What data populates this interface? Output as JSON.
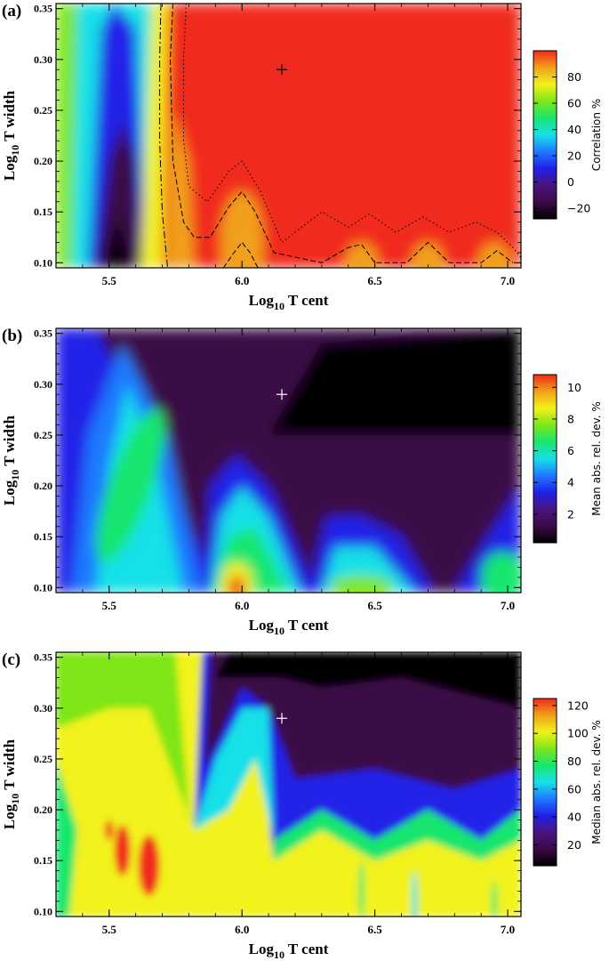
{
  "chart_data": [
    {
      "type": "heatmap",
      "panel_label": "(a)",
      "xlabel": "Log10 T cent",
      "ylabel": "Log10 T width",
      "xlim": [
        5.3,
        7.05
      ],
      "ylim": [
        0.095,
        0.355
      ],
      "xticks": [
        5.5,
        6.0,
        6.5,
        7.0
      ],
      "xtick_labels": [
        "5.5",
        "6.0",
        "6.5",
        "7.0"
      ],
      "yticks": [
        0.1,
        0.15,
        0.2,
        0.25,
        0.3,
        0.35
      ],
      "ytick_labels": [
        "0.10",
        "0.15",
        "0.20",
        "0.25",
        "0.30",
        "0.35"
      ],
      "colorbar": {
        "label": "Correlation %",
        "range": [
          -28,
          100
        ],
        "ticks": [
          -20,
          0,
          20,
          40,
          60,
          80
        ],
        "tick_labels": [
          "−20",
          "0",
          "20",
          "40",
          "60",
          "80"
        ]
      },
      "marker": {
        "x": 6.15,
        "y": 0.29,
        "color": "#000000"
      },
      "contours": "dashed, dotted and dash-dot contour lines"
    },
    {
      "type": "heatmap",
      "panel_label": "(b)",
      "xlabel": "Log10 T cent",
      "ylabel": "Log10 T width",
      "xlim": [
        5.3,
        7.05
      ],
      "ylim": [
        0.095,
        0.355
      ],
      "xticks": [
        5.5,
        6.0,
        6.5,
        7.0
      ],
      "xtick_labels": [
        "5.5",
        "6.0",
        "6.5",
        "7.0"
      ],
      "yticks": [
        0.1,
        0.15,
        0.2,
        0.25,
        0.3,
        0.35
      ],
      "ytick_labels": [
        "0.10",
        "0.15",
        "0.20",
        "0.25",
        "0.30",
        "0.35"
      ],
      "colorbar": {
        "label": "Mean abs. rel. dev. %",
        "range": [
          0.2,
          10.8
        ],
        "ticks": [
          2,
          4,
          6,
          8,
          10
        ],
        "tick_labels": [
          "2",
          "4",
          "6",
          "8",
          "10"
        ]
      },
      "marker": {
        "x": 6.15,
        "y": 0.29,
        "color": "#ffffff"
      }
    },
    {
      "type": "heatmap",
      "panel_label": "(c)",
      "xlabel": "Log10 T cent",
      "ylabel": "Log10 T width",
      "xlim": [
        5.3,
        7.05
      ],
      "ylim": [
        0.095,
        0.355
      ],
      "xticks": [
        5.5,
        6.0,
        6.5,
        7.0
      ],
      "xtick_labels": [
        "5.5",
        "6.0",
        "6.5",
        "7.0"
      ],
      "yticks": [
        0.1,
        0.15,
        0.2,
        0.25,
        0.3,
        0.35
      ],
      "ytick_labels": [
        "0.10",
        "0.15",
        "0.20",
        "0.25",
        "0.30",
        "0.35"
      ],
      "colorbar": {
        "label": "Median abs. rel. dev. %",
        "range": [
          5,
          125
        ],
        "ticks": [
          20,
          40,
          60,
          80,
          100,
          120
        ],
        "tick_labels": [
          "20",
          "40",
          "60",
          "80",
          "100",
          "120"
        ]
      },
      "marker": {
        "x": 6.15,
        "y": 0.29,
        "color": "#ffffff"
      }
    }
  ],
  "axis_text": {
    "log_prefix": "Log",
    "log_subscript": "10",
    "x_suffix": "T cent",
    "y_suffix": "T width"
  },
  "colormap": [
    "#000000",
    "#3a0a46",
    "#4a1480",
    "#2020e8",
    "#1e7aff",
    "#18e0e8",
    "#19e66e",
    "#7ee619",
    "#f2f21a",
    "#f0a01a",
    "#f02a1a"
  ]
}
